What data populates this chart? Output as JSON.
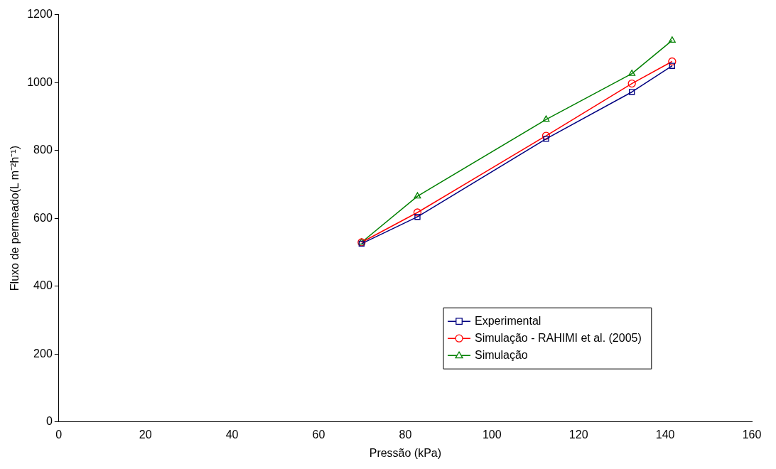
{
  "chart_data": {
    "type": "line",
    "xlabel": "Pressão (kPa)",
    "ylabel": "Fluxo de permeado(L m⁻²h⁻¹)",
    "x": [
      69.9,
      82.8,
      112.5,
      132.3,
      141.6
    ],
    "xlim": [
      0,
      160
    ],
    "xticks": [
      0,
      20,
      40,
      60,
      80,
      100,
      120,
      140,
      160
    ],
    "ylim": [
      0,
      1200
    ],
    "yticks": [
      0,
      200,
      400,
      600,
      800,
      1000,
      1200
    ],
    "grid": false,
    "legend": "bottom right",
    "line_style": "solid",
    "series": [
      {
        "name": "Experimental",
        "color": "#000080",
        "marker": "square",
        "values": [
          525,
          604,
          834,
          972,
          1049
        ]
      },
      {
        "name": "Simulação - RAHIMI et al. (2005)",
        "color": "#ff0000",
        "marker": "circle",
        "values": [
          529,
          617,
          843,
          997,
          1062
        ]
      },
      {
        "name": "Simulação",
        "color": "#008000",
        "marker": "triangle",
        "values": [
          529,
          665,
          891,
          1026,
          1124
        ]
      }
    ]
  }
}
